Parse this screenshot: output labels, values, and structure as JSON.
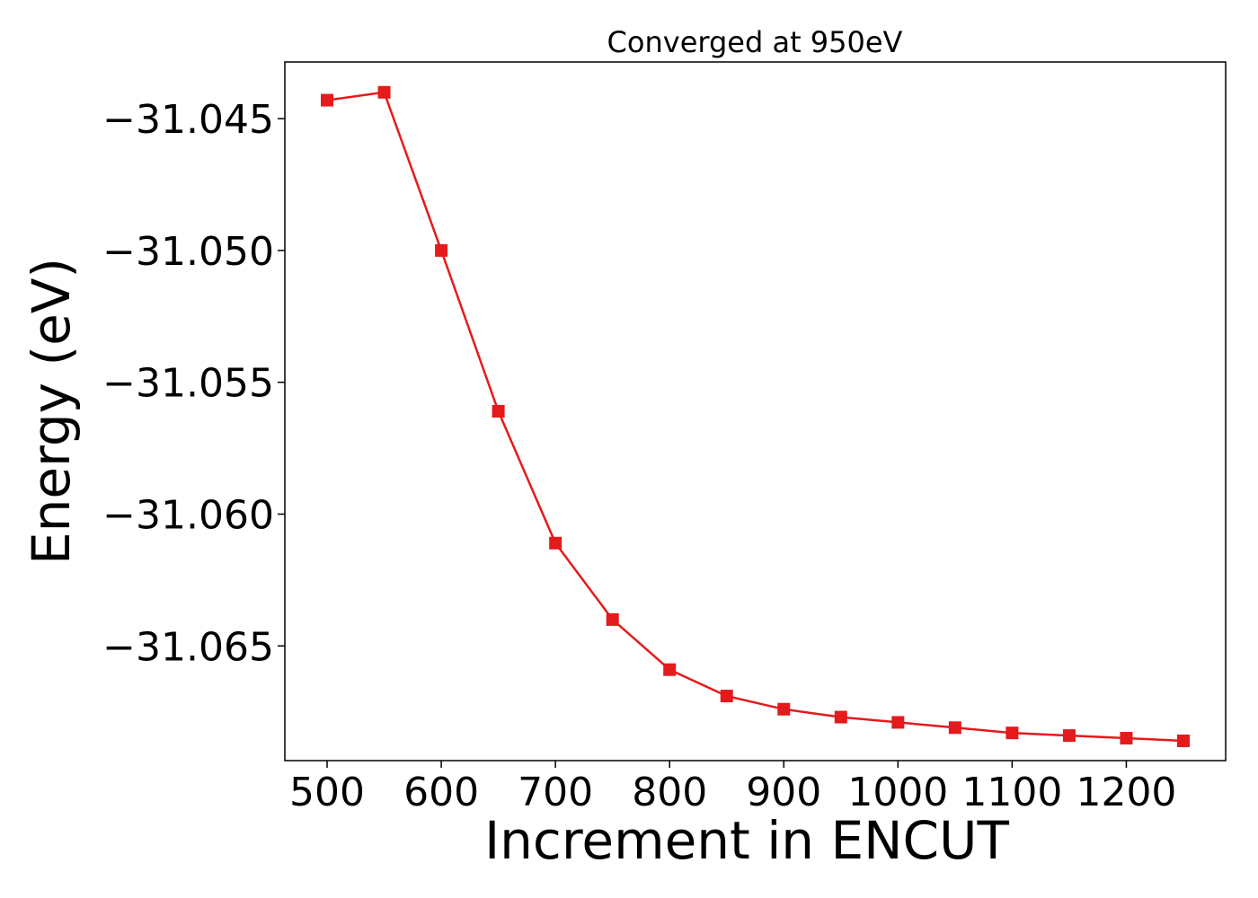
{
  "chart_data": {
    "type": "line",
    "title": "Converged at 950eV",
    "xlabel": "Increment in ENCUT",
    "ylabel": "Energy (eV)",
    "x": [
      500,
      550,
      600,
      650,
      700,
      750,
      800,
      850,
      900,
      950,
      1000,
      1050,
      1100,
      1150,
      1200,
      1250
    ],
    "series": [
      {
        "values": [
          -31.0443,
          -31.044,
          -31.05,
          -31.0561,
          -31.0611,
          -31.064,
          -31.0659,
          -31.0669,
          -31.0674,
          -31.0677,
          -31.0679,
          -31.0681,
          -31.0683,
          -31.0684,
          -31.0685,
          -31.0686
        ],
        "color": "#e41a1c",
        "marker": "square"
      }
    ],
    "xticks": [
      500,
      600,
      700,
      800,
      900,
      1000,
      1100,
      1200
    ],
    "xtick_labels": [
      "500",
      "600",
      "700",
      "800",
      "900",
      "1000",
      "1100",
      "1200"
    ],
    "yticks": [
      -31.045,
      -31.05,
      -31.055,
      -31.06,
      -31.065
    ],
    "ytick_labels": [
      "−31.045",
      "−31.050",
      "−31.055",
      "−31.060",
      "−31.065"
    ],
    "xlim": [
      463,
      1287
    ],
    "ylim": [
      -31.06935,
      -31.04285
    ],
    "grid": false,
    "legend": "none"
  }
}
